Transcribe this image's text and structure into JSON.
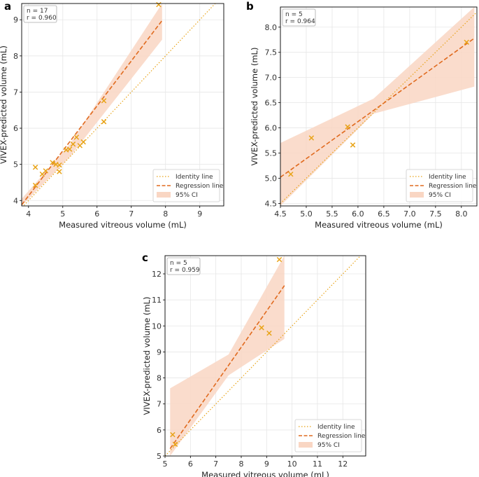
{
  "figure": {
    "legend": {
      "identity": "Identity line",
      "regression": "Regression line",
      "ci": "95% CI"
    },
    "colors": {
      "identity": "#e8a317",
      "regression": "#e06a1e",
      "ci": "#f9d6c3",
      "point": "#e8a317",
      "grid": "#e6e6e6"
    }
  },
  "chart_data": [
    {
      "panel": "a",
      "type": "scatter",
      "stats": [
        "n = 17",
        "r = 0.960"
      ],
      "xlabel": "Measured vitreous volume (mL)",
      "ylabel": "VIVEX-predicted volume (mL)",
      "xlim": [
        3.8,
        9.7
      ],
      "ylim": [
        3.85,
        9.45
      ],
      "xticks": [
        4,
        5,
        6,
        7,
        8,
        9
      ],
      "yticks": [
        4,
        5,
        6,
        7,
        8,
        9
      ],
      "grid": true,
      "legend_position": "bottom-right",
      "points": [
        [
          4.2,
          4.92
        ],
        [
          4.2,
          4.42
        ],
        [
          4.4,
          4.73
        ],
        [
          4.5,
          4.82
        ],
        [
          4.7,
          5.05
        ],
        [
          4.8,
          5.0
        ],
        [
          4.9,
          4.8
        ],
        [
          4.9,
          4.98
        ],
        [
          5.1,
          5.4
        ],
        [
          5.2,
          5.42
        ],
        [
          5.3,
          5.56
        ],
        [
          5.4,
          5.75
        ],
        [
          5.5,
          5.52
        ],
        [
          5.6,
          5.62
        ],
        [
          6.2,
          6.76
        ],
        [
          6.2,
          6.18
        ],
        [
          7.8,
          9.42
        ]
      ],
      "regression": {
        "x": [
          3.8,
          7.9
        ],
        "y": [
          3.88,
          8.98
        ]
      },
      "ci": {
        "x": [
          3.8,
          5.2,
          7.9
        ],
        "upper": [
          4.05,
          5.55,
          9.45
        ],
        "lower": [
          3.85,
          5.2,
          8.45
        ]
      }
    },
    {
      "panel": "b",
      "type": "scatter",
      "stats": [
        "n = 5",
        "r = 0.964"
      ],
      "xlabel": "Measured vitreous volume (mL)",
      "ylabel": "VIVEX-predicted volume (mL)",
      "xlim": [
        4.5,
        8.3
      ],
      "ylim": [
        4.45,
        8.4
      ],
      "xticks": [
        4.5,
        5.0,
        5.5,
        6.0,
        6.5,
        7.0,
        7.5,
        8.0
      ],
      "yticks": [
        4.5,
        5.0,
        5.5,
        6.0,
        6.5,
        7.0,
        7.5,
        8.0
      ],
      "grid": true,
      "legend_position": "bottom-right",
      "points": [
        [
          4.7,
          5.08
        ],
        [
          5.1,
          5.8
        ],
        [
          5.8,
          6.02
        ],
        [
          5.9,
          5.66
        ],
        [
          8.1,
          7.7
        ]
      ],
      "regression": {
        "x": [
          4.5,
          8.25
        ],
        "y": [
          5.02,
          7.78
        ]
      },
      "ci": {
        "x": [
          4.5,
          6.3,
          8.25
        ],
        "upper": [
          5.7,
          6.58,
          8.4
        ],
        "lower": [
          4.45,
          6.28,
          6.82
        ]
      }
    },
    {
      "panel": "c",
      "type": "scatter",
      "stats": [
        "n = 5",
        "r = 0.959"
      ],
      "xlabel": "Measured vitreous volume (mL)",
      "ylabel": "VIVEX-predicted volume (mL)",
      "xlim": [
        5.0,
        12.9
      ],
      "ylim": [
        5.0,
        12.7
      ],
      "xticks": [
        5,
        6,
        7,
        8,
        9,
        10,
        11,
        12
      ],
      "yticks": [
        5,
        6,
        7,
        8,
        9,
        10,
        11,
        12
      ],
      "grid": true,
      "legend_position": "bottom-right",
      "points": [
        [
          5.3,
          5.82
        ],
        [
          5.4,
          5.45
        ],
        [
          8.8,
          9.93
        ],
        [
          9.1,
          9.72
        ],
        [
          9.5,
          12.55
        ]
      ],
      "regression": {
        "x": [
          5.2,
          9.7
        ],
        "y": [
          5.28,
          11.55
        ]
      },
      "ci": {
        "x": [
          5.2,
          7.5,
          9.7
        ],
        "upper": [
          7.6,
          8.9,
          12.7
        ],
        "lower": [
          5.0,
          8.1,
          9.5
        ]
      }
    }
  ],
  "panels": {
    "a": {
      "label": "a"
    },
    "b": {
      "label": "b"
    },
    "c": {
      "label": "c"
    }
  }
}
